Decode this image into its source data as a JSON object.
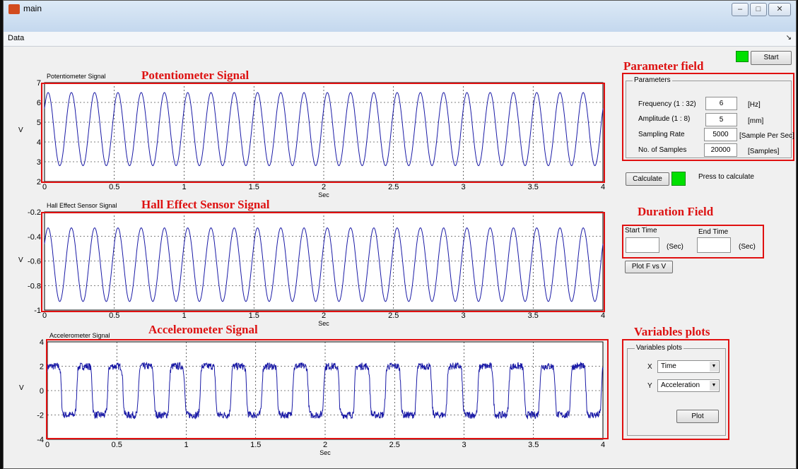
{
  "window": {
    "title": "main",
    "minimize": "–",
    "maximize": "□",
    "close": "✕"
  },
  "menubar": {
    "data_label": "Data",
    "arrow": "↘"
  },
  "annotations": {
    "potentiometer": "Potentiometer Signal",
    "hall": "Hall Effect Sensor Signal",
    "accelerometer": "Accelerometer Signal",
    "parameter_field": "Parameter field",
    "duration_field": "Duration Field",
    "variables_plots": "Variables plots"
  },
  "controls": {
    "start_label": "Start",
    "parameters_title": "Parameters",
    "params": [
      {
        "label": "Frequency (1 : 32)",
        "value": "6",
        "unit": "[Hz]"
      },
      {
        "label": "Amplitude (1 : 8)",
        "value": "5",
        "unit": "[mm]"
      },
      {
        "label": "Sampling Rate",
        "value": "5000",
        "unit": "[Sample Per Sec]"
      },
      {
        "label": "No. of Samples",
        "value": "20000",
        "unit": "[Samples]"
      }
    ],
    "calculate_label": "Calculate",
    "calculate_hint": "Press to calculate",
    "start_time_label": "Start Time",
    "end_time_label": "End Time",
    "start_time_value": "",
    "end_time_value": "",
    "sec_unit": "(Sec)",
    "plot_fv_label": "Plot F vs V",
    "variables_title": "Variables plots",
    "x_label": "X",
    "x_value": "Time",
    "y_label": "Y",
    "y_value": "Acceleration",
    "plot_label": "Plot"
  },
  "status_colors": {
    "led": "#00e000",
    "annotation": "#dd1111",
    "signal": "#1a1aa6"
  },
  "chart_data": [
    {
      "type": "line",
      "title": "Potentiometer Signal",
      "xlabel": "Sec",
      "ylabel": "V",
      "xlim": [
        0,
        4
      ],
      "ylim": [
        2,
        7
      ],
      "xticks": [
        "0",
        "0.5",
        "1",
        "1.5",
        "2",
        "2.5",
        "3",
        "3.5",
        "4"
      ],
      "yticks": [
        "2",
        "3",
        "4",
        "5",
        "6",
        "7"
      ],
      "grid": true,
      "series": [
        {
          "type": "sine",
          "frequency_hz": 6,
          "offset": 4.65,
          "amplitude": 1.85,
          "noise": 0
        }
      ]
    },
    {
      "type": "line",
      "title": "Hall Effect Sensor Signal",
      "xlabel": "Sec",
      "ylabel": "V",
      "xlim": [
        0,
        4
      ],
      "ylim": [
        -1,
        -0.2
      ],
      "xticks": [
        "0",
        "0.5",
        "1",
        "1.5",
        "2",
        "2.5",
        "3",
        "3.5",
        "4"
      ],
      "yticks": [
        "-1",
        "-0.8",
        "-0.6",
        "-0.4",
        "-0.2"
      ],
      "grid": true,
      "series": [
        {
          "type": "sine",
          "frequency_hz": 6,
          "offset": -0.63,
          "amplitude": 0.3,
          "noise": 0
        }
      ]
    },
    {
      "type": "line",
      "title": "Accelerometer Signal",
      "xlabel": "Sec",
      "ylabel": "V",
      "xlim": [
        0,
        4
      ],
      "ylim": [
        -4,
        4
      ],
      "xticks": [
        "0",
        "0.5",
        "1",
        "1.5",
        "2",
        "2.5",
        "3",
        "3.5",
        "4"
      ],
      "yticks": [
        "-4",
        "-2",
        "0",
        "2",
        "4"
      ],
      "grid": true,
      "series": [
        {
          "type": "square",
          "frequency_hz": 4.5,
          "offset": 0,
          "amplitude": 2,
          "noise": 0.3
        }
      ]
    }
  ]
}
